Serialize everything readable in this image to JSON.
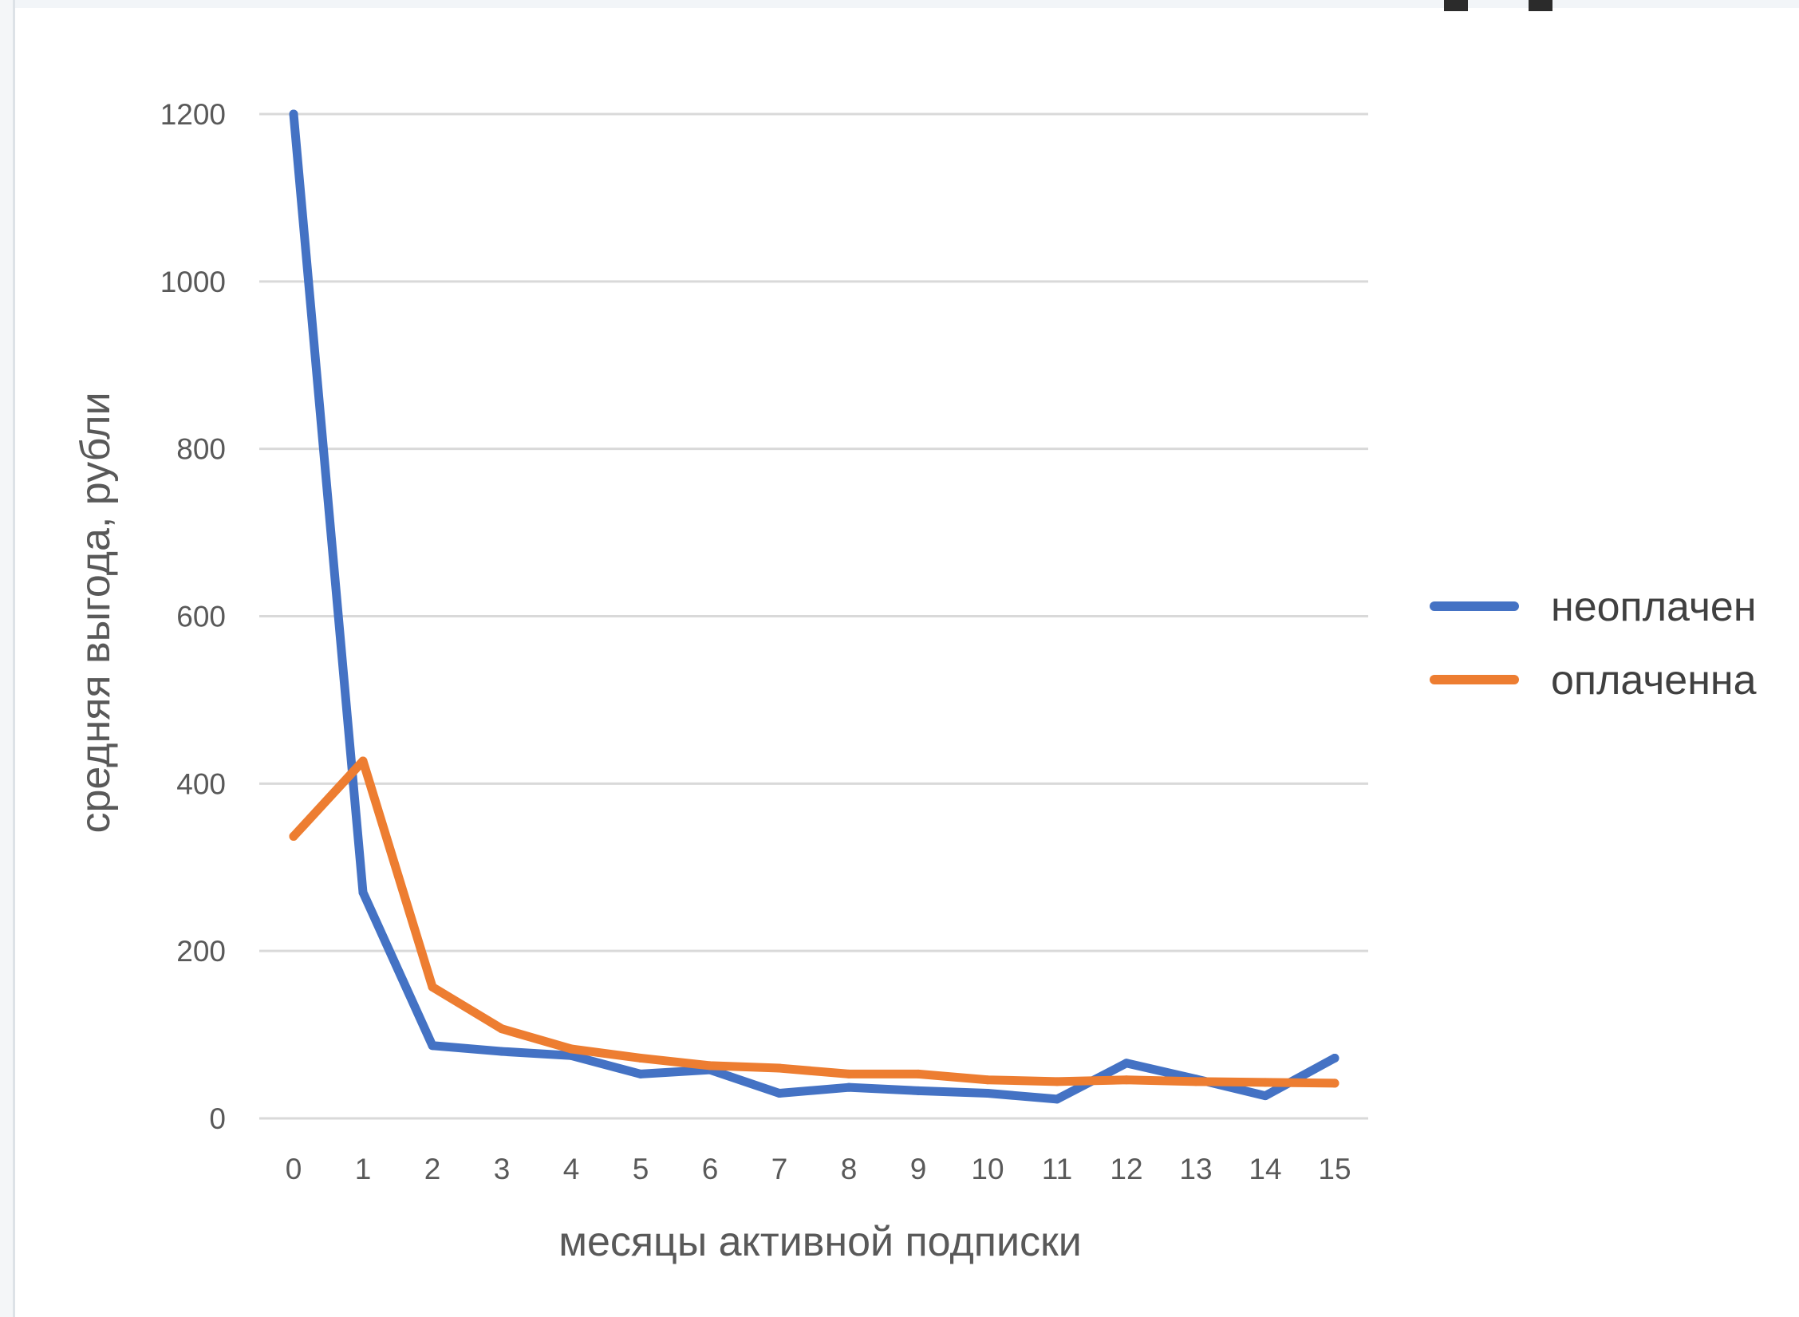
{
  "chart_data": {
    "type": "line",
    "title": "",
    "xlabel": "месяцы активной подписки",
    "ylabel": "средняя выгода, рубли",
    "x": [
      0,
      1,
      2,
      3,
      4,
      5,
      6,
      7,
      8,
      9,
      10,
      11,
      12,
      13,
      14,
      15
    ],
    "ylim": [
      0,
      1200
    ],
    "yticks": [
      0,
      200,
      400,
      600,
      800,
      1000,
      1200
    ],
    "grid": true,
    "legend_position": "right",
    "series": [
      {
        "name": "неоплачен",
        "color": "#4472c4",
        "values": [
          1200,
          270,
          87,
          80,
          75,
          53,
          58,
          30,
          37,
          33,
          30,
          23,
          66,
          47,
          27,
          72
        ]
      },
      {
        "name": "оплаченна",
        "color": "#ed7d31",
        "values": [
          337,
          427,
          157,
          107,
          83,
          72,
          63,
          60,
          53,
          53,
          46,
          44,
          46,
          44,
          43,
          42
        ]
      }
    ]
  }
}
